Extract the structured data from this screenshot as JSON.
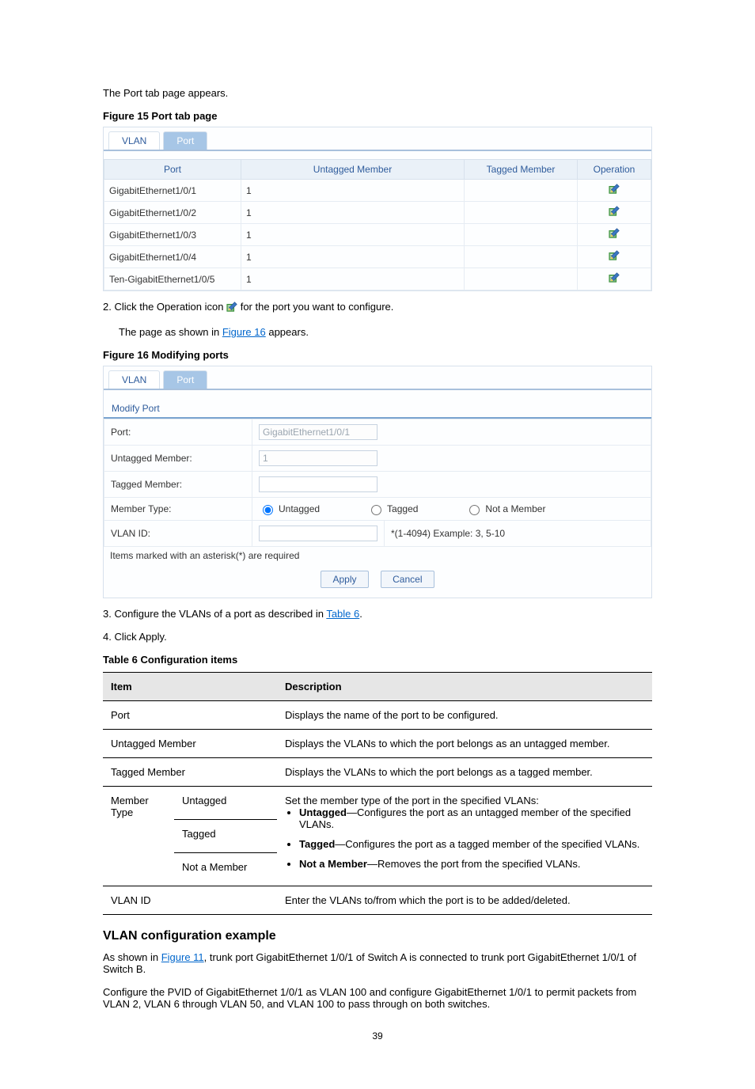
{
  "para1": "The Port tab page appears.",
  "fig15_caption": "Figure 15 Port tab page",
  "tabs": {
    "vlan_label": "VLAN",
    "port_label": "Port"
  },
  "port_table": {
    "headers": [
      "Port",
      "Untagged Member",
      "Tagged Member",
      "Operation"
    ],
    "rows": [
      {
        "port": "GigabitEthernet1/0/1",
        "untagged": "1",
        "tagged": ""
      },
      {
        "port": "GigabitEthernet1/0/2",
        "untagged": "1",
        "tagged": ""
      },
      {
        "port": "GigabitEthernet1/0/3",
        "untagged": "1",
        "tagged": ""
      },
      {
        "port": "GigabitEthernet1/0/4",
        "untagged": "1",
        "tagged": ""
      },
      {
        "port": "Ten-GigabitEthernet1/0/5",
        "untagged": "1",
        "tagged": ""
      }
    ]
  },
  "step2": {
    "prefix": "2. Click the Operation icon ",
    "suffix": " for the port you want to configure."
  },
  "para2_prefix": "The page as shown in ",
  "para2_link": "Figure 16",
  "para2_suffix": " appears.",
  "fig16_caption": "Figure 16 Modifying ports",
  "modify_form": {
    "title": "Modify Port",
    "labels": {
      "port": "Port:",
      "untagged": "Untagged Member:",
      "tagged": "Tagged Member:",
      "member_type": "Member Type:",
      "vlan_id": "VLAN ID:"
    },
    "values": {
      "port": "GigabitEthernet1/0/1",
      "untagged": "1",
      "tagged": ""
    },
    "radios": {
      "untagged": "Untagged",
      "tagged": "Tagged",
      "not_member": "Not a Member"
    },
    "vlan_hint": "*(1-4094) Example: 3, 5-10",
    "note": "Items marked with an asterisk(*) are required",
    "apply": "Apply",
    "cancel": "Cancel"
  },
  "step3_prefix": "3. Configure the VLANs of a port as described in ",
  "step3_link": "Table 6",
  "step3_suffix": ".",
  "step4": "4. Click Apply.",
  "table6_caption": "Table 6 Configuration items",
  "cfg": {
    "headers": [
      "Item",
      "Description"
    ],
    "rows": {
      "port": {
        "item": "Port",
        "desc": "Displays the name of the port to be configured."
      },
      "untagged": {
        "item": "Untagged Member",
        "desc": "Displays the VLANs to which the port belongs as an untagged member."
      },
      "tagged": {
        "item": "Tagged Member",
        "desc": "Displays the VLANs to which the port belongs as a tagged member."
      },
      "member_type_label": "Member Type",
      "mt_untagged": {
        "item": "Untagged",
        "desc": "Set the member type of the port in the specified VLANs:"
      },
      "mt_tagged_item": "Tagged",
      "mt_not_item": "Not a Member",
      "bullets": [
        "Untagged—Configures the port as an untagged member of the specified VLANs.",
        "Tagged—Configures the port as a tagged member of the specified VLANs.",
        "Not a Member—Removes the port from the specified VLANs."
      ],
      "vlan_id": {
        "item": "VLAN ID",
        "desc": "Enter the VLANs to/from which the port is to be added/deleted."
      }
    }
  },
  "section_title": "VLAN configuration example",
  "subsection_prefix": "As shown in ",
  "subsection_link": "Figure 11",
  "subsection_suffix": ", trunk port GigabitEthernet 1/0/1 of Switch A is connected to trunk port GigabitEthernet 1/0/1 of Switch B.",
  "task": "Configure the PVID of GigabitEthernet 1/0/1 as VLAN 100 and configure GigabitEthernet 1/0/1 to permit packets from VLAN 2, VLAN 6 through VLAN 50, and VLAN 100 to pass through on both switches.",
  "page_number": "39",
  "colors": {
    "link": "#0066cc",
    "tab_active_bg": "#a7c6e6",
    "tab_text": "#2f5c9c",
    "panel_border": "#d7e1ec",
    "header_bg": "#eaf1f8",
    "icon_green": "#2f8a2f",
    "icon_blue": "#3a78c4"
  }
}
